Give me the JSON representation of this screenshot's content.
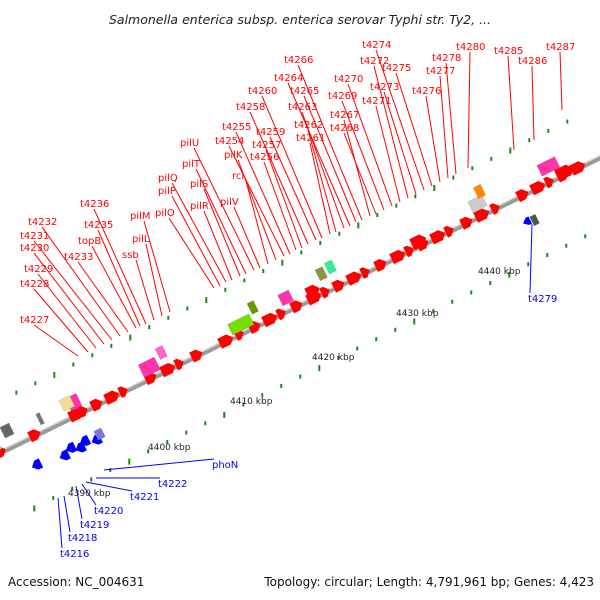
{
  "title": "Salmonella enterica subsp. enterica serovar Typhi str. Ty2, ...",
  "footer": {
    "accession": "Accession: NC_004631",
    "summary": "Topology: circular; Length: 4,791,961 bp; Genes: 4,423"
  },
  "colors": {
    "forward": "#ff0000",
    "reverse": "#0000ff",
    "backbone": "#999999",
    "dots": "#1a8a1a"
  },
  "scale_ticks": [
    "4390 kbp",
    "4400 kbp",
    "4410 kbp",
    "4420 kbp",
    "4430 kbp",
    "4440 kbp"
  ],
  "forward_labels": [
    "t4227",
    "t4228",
    "t4229",
    "t4230",
    "t4231",
    "t4232",
    "t4233",
    "topB",
    "t4235",
    "t4236",
    "ssb",
    "pilL",
    "pilM",
    "pilO",
    "pilP",
    "pilQ",
    "pilR",
    "pilS",
    "pilT",
    "pilU",
    "pilV",
    "rci",
    "pilK",
    "t4254",
    "t4255",
    "t4256",
    "t4257",
    "t4258",
    "t4259",
    "t4260",
    "t4261",
    "t4262",
    "t4263",
    "t4264",
    "t4265",
    "t4266",
    "t4267",
    "t4268",
    "t4269",
    "t4270",
    "t4271",
    "t4272",
    "t4273",
    "t4274",
    "t4275",
    "t4276",
    "t4277",
    "t4278",
    "t4280",
    "t4285",
    "t4286",
    "t4287"
  ],
  "reverse_labels": [
    "t4216",
    "t4218",
    "t4219",
    "t4220",
    "t4221",
    "t4222",
    "phoN",
    "t4279"
  ]
}
